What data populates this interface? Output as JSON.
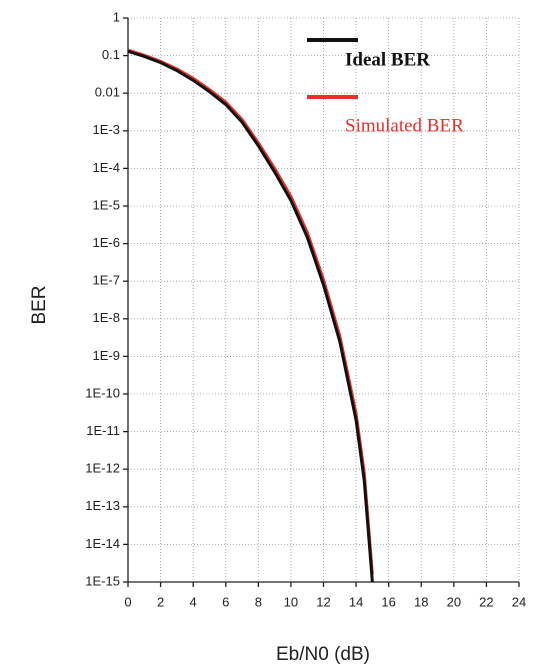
{
  "chart_data": {
    "type": "line",
    "x_label": "Eb/N0 (dB)",
    "y_label": "BER",
    "x": [
      0,
      1,
      2,
      3,
      4,
      5,
      6,
      7,
      8,
      9,
      10,
      11,
      12,
      13,
      14,
      14.5,
      15
    ],
    "series": [
      {
        "name": "Ideal BER",
        "color": "#111111",
        "values": [
          0.13,
          0.095,
          0.065,
          0.04,
          0.022,
          0.011,
          0.005,
          0.0017,
          0.0004,
          8e-05,
          1.4e-05,
          1.5e-06,
          8e-08,
          2.5e-09,
          2e-11,
          5e-13,
          1e-15
        ]
      },
      {
        "name": "Simulated BER",
        "color": "#e8302a",
        "values": [
          0.14,
          0.102,
          0.07,
          0.044,
          0.025,
          0.0125,
          0.0058,
          0.002,
          0.00048,
          0.0001,
          1.8e-05,
          2e-06,
          1.1e-07,
          3.5e-09,
          3e-11,
          8e-13,
          1.6e-15
        ]
      }
    ],
    "xlim": [
      0,
      24
    ],
    "xticks": [
      0,
      2,
      4,
      6,
      8,
      10,
      12,
      14,
      16,
      18,
      20,
      22,
      24
    ],
    "ylim": [
      1e-15,
      1
    ],
    "log_y": true,
    "yticks": [
      1,
      0.1,
      0.01,
      {
        "value": 0.001,
        "label": "1E-3"
      },
      {
        "value": 0.0001,
        "label": "1E-4"
      },
      {
        "value": 1e-05,
        "label": "1E-5"
      },
      {
        "value": 1e-06,
        "label": "1E-6"
      },
      {
        "value": 1e-07,
        "label": "1E-7"
      },
      {
        "value": 1e-08,
        "label": "1E-8"
      },
      {
        "value": 1e-09,
        "label": "1E-9"
      },
      {
        "value": 1e-10,
        "label": "1E-10"
      },
      {
        "value": 1e-11,
        "label": "1E-11"
      },
      {
        "value": 1e-12,
        "label": "1E-12"
      },
      {
        "value": 1e-13,
        "label": "1E-13"
      },
      {
        "value": 1e-14,
        "label": "1E-14"
      },
      {
        "value": 1e-15,
        "label": "1E-15"
      }
    ],
    "grid": true,
    "legend": "upper right"
  }
}
